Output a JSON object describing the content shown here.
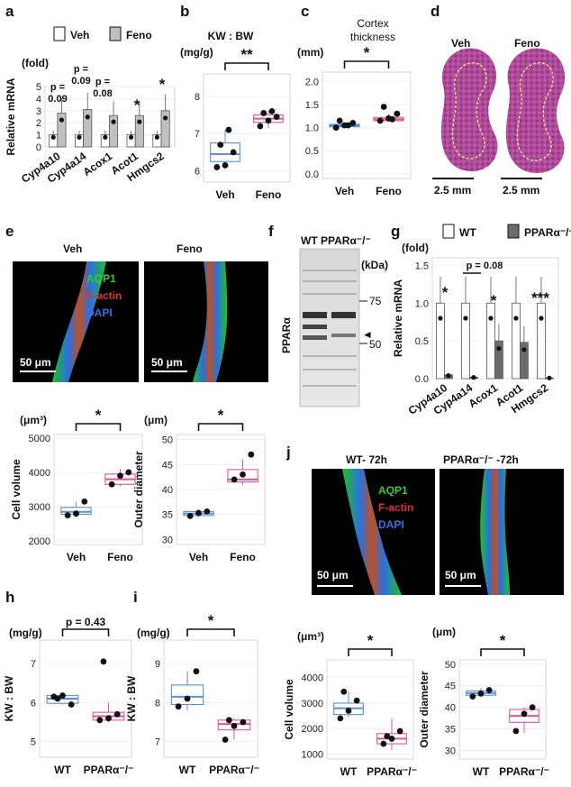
{
  "panel_labels": {
    "a": "a",
    "b": "b",
    "c": "c",
    "d": "d",
    "e": "e",
    "f": "f",
    "g": "g",
    "h": "h",
    "i": "i",
    "j": "j"
  },
  "colors": {
    "veh_box": "#5b8fd8",
    "feno_box": "#e0559a",
    "bar_ctrl": "#ffffff",
    "bar_feno": "#c0c0c0",
    "bar_ko": "#6b6b6b",
    "aqp1": "#2fd02f",
    "factin": "#e03030",
    "dapi": "#3a6fe0"
  },
  "micro": {
    "d": {
      "veh": "Veh",
      "feno": "Feno",
      "scale_left": "2.5 mm",
      "scale_right": "2.5 mm"
    },
    "e": {
      "veh": "Veh",
      "feno": "Feno",
      "aqp1": "AQP1",
      "factin": "F-actin",
      "dapi": "DAPI",
      "scale_left": "50 μm",
      "scale_right": "50 μm"
    },
    "f": {
      "title": "WT PPARα⁻/⁻",
      "kda": "(kDa)",
      "m75": "75",
      "m50": "50",
      "ylabel": "PPARα"
    },
    "j": {
      "left_title": "WT- 72h",
      "right_title": "PPARα⁻/⁻ -72h",
      "aqp1": "AQP1",
      "factin": "F-actin",
      "dapi": "DAPI",
      "scale_left": "50 μm",
      "scale_right": "50 μm"
    }
  },
  "chart_data": [
    {
      "id": "a",
      "type": "bar",
      "unit": "(fold)",
      "ylabel": "Relative mRNA",
      "ylim": [
        0,
        5
      ],
      "yticks": [
        "0",
        "1",
        "2",
        "3",
        "4",
        "5"
      ],
      "legend": [
        "Veh",
        "Feno"
      ],
      "categories": [
        "Cyp4a10",
        "Cyp4a14",
        "Acox1",
        "Acot1",
        "Hmgcs2"
      ],
      "series": [
        {
          "name": "Veh",
          "values": [
            1,
            1,
            1,
            1,
            1
          ]
        },
        {
          "name": "Feno",
          "values": [
            2.8,
            3.1,
            2.6,
            2.6,
            3.0
          ]
        }
      ],
      "annotations": [
        "p =",
        "0.09",
        "p =",
        "0.09",
        "p =",
        "0.08",
        "*",
        "*"
      ]
    },
    {
      "id": "b",
      "type": "box",
      "title": "KW : BW",
      "unit": "(mg/g)",
      "ylim": [
        5.7,
        8.6
      ],
      "yticks": [
        "6",
        "7",
        "8"
      ],
      "categories": [
        "Veh",
        "Feno"
      ],
      "groups": [
        {
          "name": "Veh",
          "q1": 6.25,
          "median": 6.45,
          "q3": 6.75,
          "min": 6.05,
          "max": 7.1,
          "points": [
            6.1,
            6.15,
            6.5,
            6.7,
            7.1
          ]
        },
        {
          "name": "Feno",
          "q1": 7.3,
          "median": 7.4,
          "q3": 7.5,
          "min": 7.15,
          "max": 7.6,
          "points": [
            7.2,
            7.35,
            7.45,
            7.55,
            7.6
          ]
        }
      ],
      "significance": "**"
    },
    {
      "id": "c",
      "type": "box",
      "title": "Cortex thickness",
      "unit": "(mm)",
      "ylim": [
        -0.1,
        2.2
      ],
      "yticks": [
        "0.0",
        "0.5",
        "1.0",
        "1.5",
        "2.0"
      ],
      "categories": [
        "Veh",
        "Feno"
      ],
      "groups": [
        {
          "name": "Veh",
          "q1": 1.02,
          "median": 1.05,
          "q3": 1.07,
          "min": 1.0,
          "max": 1.1,
          "points": [
            1.0,
            1.05,
            1.1,
            1.15,
            1.05
          ]
        },
        {
          "name": "Feno",
          "q1": 1.15,
          "median": 1.18,
          "q3": 1.22,
          "min": 1.12,
          "max": 1.3,
          "points": [
            1.15,
            1.2,
            1.3,
            1.45,
            1.18
          ]
        }
      ],
      "significance": "*"
    },
    {
      "id": "g",
      "type": "bar",
      "unit": "(fold)",
      "ylabel": "Relative mRNA",
      "ylim": [
        0,
        1.6
      ],
      "yticks": [
        "0.0",
        "0.5",
        "1.0",
        "1.5"
      ],
      "legend": [
        "WT",
        "PPARα⁻/⁻"
      ],
      "categories": [
        "Cyp4a10",
        "Cyp4a14",
        "Acox1",
        "Acot1",
        "Hmgcs2"
      ],
      "series": [
        {
          "name": "WT",
          "values": [
            1.0,
            1.0,
            1.0,
            1.0,
            1.0
          ]
        },
        {
          "name": "PPARα⁻/⁻",
          "values": [
            0.05,
            0.02,
            0.5,
            0.48,
            0.01
          ]
        }
      ],
      "annotations": [
        "*",
        "p = 0.08",
        "*",
        "***"
      ]
    },
    {
      "id": "e_cv",
      "type": "box",
      "unit": "(μm³)",
      "ylabel": "Cell volume",
      "ylim": [
        1900,
        5100
      ],
      "yticks": [
        "2000",
        "3000",
        "4000",
        "5000"
      ],
      "categories": [
        "Veh",
        "Feno"
      ],
      "groups": [
        {
          "name": "Veh",
          "q1": 2780,
          "median": 2850,
          "q3": 2980,
          "min": 2700,
          "max": 3150,
          "points": [
            2750,
            2800,
            3150
          ]
        },
        {
          "name": "Feno",
          "q1": 3650,
          "median": 3800,
          "q3": 3950,
          "min": 3600,
          "max": 4100,
          "points": [
            3650,
            3900,
            4000
          ]
        }
      ],
      "significance": "*"
    },
    {
      "id": "e_od",
      "type": "box",
      "unit": "(μm)",
      "ylabel": "Outer diameter",
      "ylim": [
        29,
        51
      ],
      "yticks": [
        "30",
        "35",
        "40",
        "45",
        "50"
      ],
      "categories": [
        "Veh",
        "Feno"
      ],
      "groups": [
        {
          "name": "Veh",
          "q1": 34.8,
          "median": 35.2,
          "q3": 35.6,
          "min": 34.5,
          "max": 36,
          "points": [
            34.7,
            35.3,
            35.6
          ]
        },
        {
          "name": "Feno",
          "q1": 41.5,
          "median": 42,
          "q3": 44,
          "min": 41,
          "max": 46,
          "points": [
            42,
            43,
            47
          ]
        }
      ],
      "significance": "*"
    },
    {
      "id": "h",
      "type": "box",
      "unit": "(mg/g)",
      "ylabel": "KW : BW",
      "ylim": [
        4.6,
        7.6
      ],
      "yticks": [
        "5",
        "6",
        "7"
      ],
      "categories": [
        "WT",
        "PPARα⁻/⁻"
      ],
      "groups": [
        {
          "name": "WT",
          "q1": 5.98,
          "median": 6.1,
          "q3": 6.18,
          "min": 5.95,
          "max": 6.2,
          "points": [
            6.15,
            6.18,
            5.95,
            6.1
          ]
        },
        {
          "name": "PPARα⁻/⁻",
          "q1": 5.55,
          "median": 5.65,
          "q3": 5.75,
          "min": 5.5,
          "max": 6.0,
          "points": [
            5.55,
            5.6,
            5.7,
            7.05
          ]
        }
      ],
      "significance": "p = 0.43"
    },
    {
      "id": "i",
      "type": "box",
      "unit": "(mg/g)",
      "ylabel": "KW : BW",
      "ylim": [
        6.6,
        9.6
      ],
      "yticks": [
        "7",
        "8",
        "9"
      ],
      "categories": [
        "WT",
        "PPARα⁻/⁻"
      ],
      "groups": [
        {
          "name": "WT",
          "q1": 7.95,
          "median": 8.15,
          "q3": 8.45,
          "min": 7.8,
          "max": 8.8,
          "points": [
            7.9,
            8.1,
            8.8
          ]
        },
        {
          "name": "PPARα⁻/⁻",
          "q1": 7.3,
          "median": 7.45,
          "q3": 7.55,
          "min": 7.05,
          "max": 7.6,
          "points": [
            7.05,
            7.4,
            7.5,
            7.55
          ]
        }
      ],
      "significance": "*"
    },
    {
      "id": "j_cv",
      "type": "box",
      "unit": "(μm³)",
      "ylabel": "Cell volume",
      "ylim": [
        800,
        4700
      ],
      "yticks": [
        "1000",
        "2000",
        "3000",
        "4000"
      ],
      "categories": [
        "WT",
        "PPARα⁻/⁻"
      ],
      "groups": [
        {
          "name": "WT",
          "q1": 2550,
          "median": 2800,
          "q3": 3000,
          "min": 2450,
          "max": 3450,
          "points": [
            2400,
            2700,
            3100,
            3450
          ]
        },
        {
          "name": "PPARα⁻/⁻",
          "q1": 1400,
          "median": 1600,
          "q3": 1800,
          "min": 1150,
          "max": 2400,
          "points": [
            1400,
            1600,
            1900,
            1700
          ]
        }
      ],
      "significance": "*"
    },
    {
      "id": "j_od",
      "type": "box",
      "unit": "(μm)",
      "ylabel": "Outer diameter",
      "ylim": [
        28,
        51
      ],
      "yticks": [
        "30",
        "35",
        "40",
        "45",
        "50"
      ],
      "categories": [
        "WT",
        "PPARα⁻/⁻"
      ],
      "groups": [
        {
          "name": "WT",
          "q1": 42.8,
          "median": 43.3,
          "q3": 43.8,
          "min": 42.5,
          "max": 44.5,
          "points": [
            42.5,
            43.2,
            44
          ]
        },
        {
          "name": "PPARα⁻/⁻",
          "q1": 36.5,
          "median": 38,
          "q3": 39.5,
          "min": 34,
          "max": 40,
          "points": [
            34.5,
            38.5,
            40
          ]
        }
      ],
      "significance": "*"
    }
  ]
}
